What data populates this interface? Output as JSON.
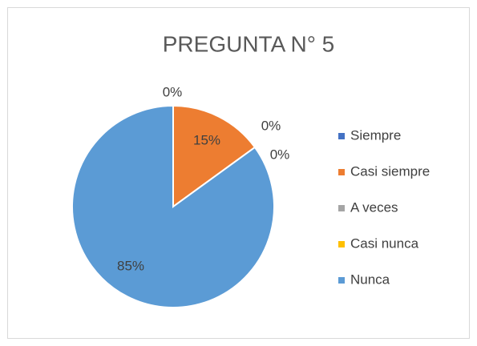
{
  "chart_data": {
    "type": "pie",
    "title": "PREGUNTA N° 5",
    "categories": [
      "Siempre",
      "Casi siempre",
      "A veces",
      "Casi nunca",
      "Nunca"
    ],
    "values": [
      0,
      15,
      0,
      0,
      85
    ],
    "value_labels": [
      "0%",
      "15%",
      "0%",
      "0%",
      "85%"
    ],
    "colors": [
      "#4472c4",
      "#ed7d31",
      "#a5a5a5",
      "#ffc000",
      "#5b9bd5"
    ],
    "legend": "right"
  }
}
